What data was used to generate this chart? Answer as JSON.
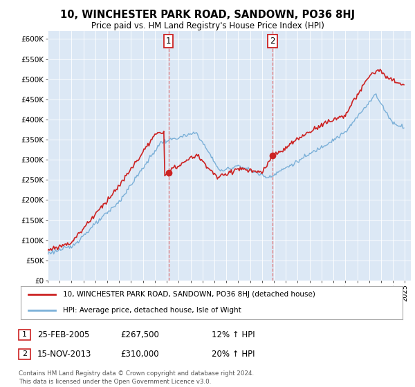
{
  "title": "10, WINCHESTER PARK ROAD, SANDOWN, PO36 8HJ",
  "subtitle": "Price paid vs. HM Land Registry's House Price Index (HPI)",
  "ylim": [
    0,
    620000
  ],
  "xlim_start": 1995.0,
  "xlim_end": 2025.5,
  "marker1_x": 2005.15,
  "marker1_y": 267500,
  "marker2_x": 2013.88,
  "marker2_y": 310000,
  "vline_color": "#e06060",
  "hpi_color": "#7bb0d8",
  "price_color": "#cc2222",
  "legend1_label": "10, WINCHESTER PARK ROAD, SANDOWN, PO36 8HJ (detached house)",
  "legend2_label": "HPI: Average price, detached house, Isle of Wight",
  "footer": "Contains HM Land Registry data © Crown copyright and database right 2024.\nThis data is licensed under the Open Government Licence v3.0.",
  "background_color": "#ffffff",
  "plot_bg_color": "#dce8f5"
}
